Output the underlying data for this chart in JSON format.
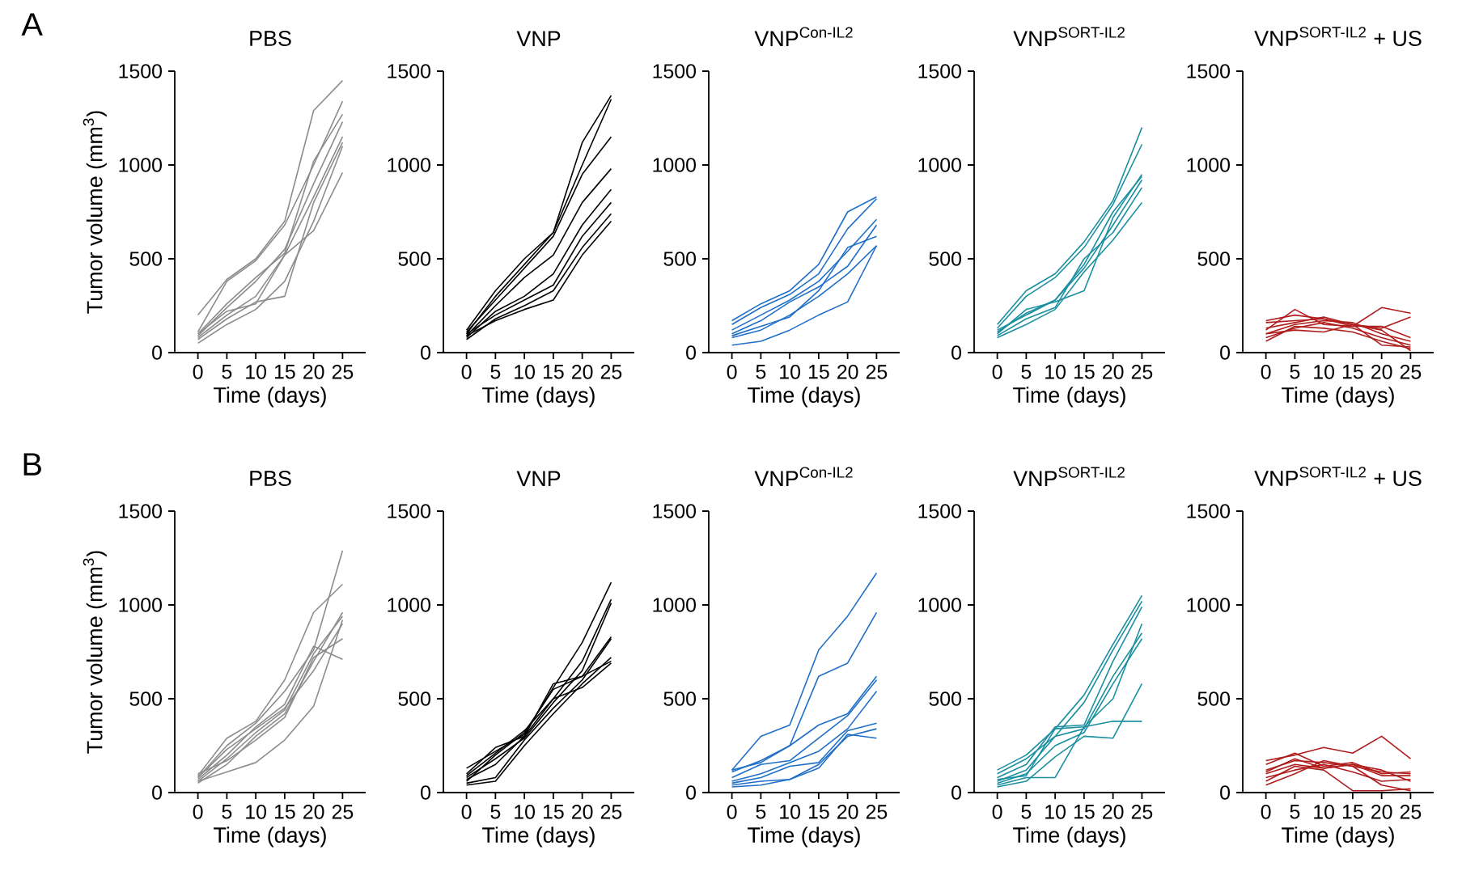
{
  "chart_data": [
    {
      "type": "line",
      "title": "PBS",
      "xlabel": "Time (days)",
      "ylabel": "Tumor volume (mm$^{3}$)",
      "annotations": [
        "A"
      ],
      "color": "#8c8c8c",
      "x": [
        0,
        5,
        10,
        15,
        20,
        25
      ],
      "xlim": [
        -4,
        29
      ],
      "xticks": [
        0,
        5,
        10,
        15,
        20,
        25
      ],
      "ylim": [
        0,
        1500
      ],
      "yticks": [
        0,
        500,
        1000,
        1500
      ],
      "series": [
        {
          "values": [
            200,
            390,
            500,
            700,
            1290,
            1450
          ]
        },
        {
          "values": [
            110,
            380,
            490,
            680,
            1000,
            1340
          ]
        },
        {
          "values": [
            100,
            260,
            400,
            530,
            1020,
            1270
          ]
        },
        {
          "values": [
            90,
            240,
            380,
            550,
            900,
            1230
          ]
        },
        {
          "values": [
            80,
            200,
            300,
            520,
            830,
            1150
          ]
        },
        {
          "values": [
            70,
            180,
            270,
            300,
            800,
            1120
          ]
        },
        {
          "values": [
            50,
            150,
            230,
            380,
            700,
            1100
          ]
        },
        {
          "values": [
            100,
            220,
            260,
            520,
            650,
            960
          ]
        }
      ]
    },
    {
      "type": "line",
      "title": "VNP",
      "xlabel": "Time (days)",
      "color": "#000000",
      "x": [
        0,
        5,
        10,
        15,
        20,
        25
      ],
      "xlim": [
        -4,
        29
      ],
      "xticks": [
        0,
        5,
        10,
        15,
        20,
        25
      ],
      "ylim": [
        0,
        1500
      ],
      "yticks": [
        0,
        500,
        1000,
        1500
      ],
      "series": [
        {
          "values": [
            100,
            300,
            470,
            640,
            1120,
            1370
          ]
        },
        {
          "values": [
            120,
            330,
            500,
            640,
            1000,
            1350
          ]
        },
        {
          "values": [
            110,
            280,
            450,
            620,
            950,
            1150
          ]
        },
        {
          "values": [
            90,
            250,
            400,
            520,
            800,
            980
          ]
        },
        {
          "values": [
            80,
            220,
            300,
            420,
            680,
            870
          ]
        },
        {
          "values": [
            100,
            200,
            280,
            360,
            620,
            800
          ]
        },
        {
          "values": [
            70,
            180,
            250,
            330,
            560,
            740
          ]
        },
        {
          "values": [
            90,
            170,
            230,
            280,
            520,
            700
          ]
        }
      ]
    },
    {
      "type": "line",
      "title": "VNP$^{Con-IL2}$",
      "xlabel": "Time (days)",
      "color": "#1f6fc8",
      "x": [
        0,
        5,
        10,
        15,
        20,
        25
      ],
      "xlim": [
        -4,
        29
      ],
      "xticks": [
        0,
        5,
        10,
        15,
        20,
        25
      ],
      "ylim": [
        0,
        1500
      ],
      "yticks": [
        0,
        500,
        1000,
        1500
      ],
      "series": [
        {
          "values": [
            170,
            260,
            330,
            470,
            750,
            830
          ]
        },
        {
          "values": [
            150,
            240,
            310,
            420,
            660,
            820
          ]
        },
        {
          "values": [
            120,
            200,
            280,
            380,
            540,
            710
          ]
        },
        {
          "values": [
            100,
            170,
            270,
            350,
            460,
            680
          ]
        },
        {
          "values": [
            90,
            140,
            190,
            330,
            560,
            620
          ]
        },
        {
          "values": [
            80,
            120,
            200,
            300,
            420,
            570
          ]
        },
        {
          "values": [
            40,
            60,
            120,
            200,
            270,
            570
          ]
        }
      ]
    },
    {
      "type": "line",
      "title": "VNP$^{SORT-IL2}$",
      "xlabel": "Time (days)",
      "color": "#1a8fa0",
      "x": [
        0,
        5,
        10,
        15,
        20,
        25
      ],
      "xlim": [
        -4,
        29
      ],
      "xticks": [
        0,
        5,
        10,
        15,
        20,
        25
      ],
      "ylim": [
        0,
        1500
      ],
      "yticks": [
        0,
        500,
        1000,
        1500
      ],
      "series": [
        {
          "values": [
            150,
            330,
            420,
            590,
            810,
            1200
          ]
        },
        {
          "values": [
            130,
            300,
            400,
            560,
            790,
            1110
          ]
        },
        {
          "values": [
            100,
            230,
            270,
            330,
            720,
            950
          ]
        },
        {
          "values": [
            110,
            210,
            280,
            450,
            680,
            920
          ]
        },
        {
          "values": [
            90,
            180,
            240,
            500,
            640,
            880
          ]
        },
        {
          "values": [
            80,
            150,
            230,
            430,
            600,
            800
          ]
        },
        {
          "values": [
            120,
            200,
            280,
            470,
            750,
            940
          ]
        }
      ]
    },
    {
      "type": "line",
      "title": "VNP$^{SORT-IL2}$ + US",
      "xlabel": "Time (days)",
      "color": "#b01c1c",
      "x": [
        0,
        5,
        10,
        15,
        20,
        25
      ],
      "xlim": [
        -4,
        29
      ],
      "xticks": [
        0,
        5,
        10,
        15,
        20,
        25
      ],
      "ylim": [
        0,
        1500
      ],
      "yticks": [
        0,
        500,
        1000,
        1500
      ],
      "series": [
        {
          "values": [
            160,
            170,
            180,
            140,
            240,
            210
          ]
        },
        {
          "values": [
            170,
            200,
            180,
            150,
            130,
            190
          ]
        },
        {
          "values": [
            120,
            230,
            150,
            140,
            140,
            80
          ]
        },
        {
          "values": [
            100,
            150,
            170,
            160,
            100,
            60
          ]
        },
        {
          "values": [
            80,
            130,
            160,
            130,
            80,
            40
          ]
        },
        {
          "values": [
            60,
            140,
            130,
            110,
            60,
            20
          ]
        },
        {
          "values": [
            130,
            160,
            190,
            150,
            120,
            10
          ]
        },
        {
          "values": [
            100,
            120,
            110,
            150,
            40,
            30
          ]
        }
      ]
    },
    {
      "type": "line",
      "title": "PBS",
      "xlabel": "Time (days)",
      "ylabel": "Tumor volume (mm$^{3}$)",
      "annotations": [
        "B"
      ],
      "color": "#8c8c8c",
      "x": [
        0,
        5,
        10,
        15,
        20,
        25
      ],
      "xlim": [
        -4,
        29
      ],
      "xticks": [
        0,
        5,
        10,
        15,
        20,
        25
      ],
      "ylim": [
        0,
        1500
      ],
      "yticks": [
        0,
        500,
        1000,
        1500
      ],
      "series": [
        {
          "values": [
            90,
            290,
            380,
            600,
            960,
            1110
          ]
        },
        {
          "values": [
            80,
            250,
            370,
            540,
            760,
            1290
          ]
        },
        {
          "values": [
            70,
            200,
            350,
            470,
            780,
            710
          ]
        },
        {
          "values": [
            60,
            180,
            320,
            440,
            740,
            940
          ]
        },
        {
          "values": [
            50,
            150,
            300,
            420,
            700,
            960
          ]
        },
        {
          "values": [
            100,
            170,
            280,
            400,
            720,
            820
          ]
        },
        {
          "values": [
            60,
            110,
            160,
            280,
            460,
            920
          ]
        },
        {
          "values": [
            80,
            230,
            340,
            450,
            650,
            900
          ]
        }
      ]
    },
    {
      "type": "line",
      "title": "VNP",
      "xlabel": "Time (days)",
      "color": "#000000",
      "x": [
        0,
        5,
        10,
        15,
        20,
        25
      ],
      "xlim": [
        -4,
        29
      ],
      "xticks": [
        0,
        5,
        10,
        15,
        20,
        25
      ],
      "ylim": [
        0,
        1500
      ],
      "yticks": [
        0,
        500,
        1000,
        1500
      ],
      "series": [
        {
          "values": [
            130,
            220,
            310,
            560,
            800,
            1120
          ]
        },
        {
          "values": [
            100,
            240,
            300,
            500,
            700,
            1030
          ]
        },
        {
          "values": [
            80,
            180,
            290,
            480,
            650,
            1010
          ]
        },
        {
          "values": [
            60,
            200,
            320,
            550,
            620,
            830
          ]
        },
        {
          "values": [
            50,
            80,
            280,
            450,
            600,
            820
          ]
        },
        {
          "values": [
            70,
            150,
            300,
            580,
            620,
            700
          ]
        },
        {
          "values": [
            40,
            60,
            250,
            420,
            580,
            720
          ]
        },
        {
          "values": [
            90,
            210,
            330,
            500,
            560,
            690
          ]
        }
      ]
    },
    {
      "type": "line",
      "title": "VNP$^{Con-IL2}$",
      "xlabel": "Time (days)",
      "color": "#1f6fc8",
      "x": [
        0,
        5,
        10,
        15,
        20,
        25
      ],
      "xlim": [
        -4,
        29
      ],
      "xticks": [
        0,
        5,
        10,
        15,
        20,
        25
      ],
      "ylim": [
        0,
        1500
      ],
      "yticks": [
        0,
        500,
        1000,
        1500
      ],
      "series": [
        {
          "values": [
            120,
            300,
            360,
            760,
            940,
            1170
          ]
        },
        {
          "values": [
            110,
            170,
            250,
            620,
            690,
            960
          ]
        },
        {
          "values": [
            120,
            160,
            250,
            360,
            420,
            620
          ]
        },
        {
          "values": [
            80,
            150,
            170,
            290,
            410,
            600
          ]
        },
        {
          "values": [
            60,
            100,
            160,
            220,
            340,
            540
          ]
        },
        {
          "values": [
            50,
            80,
            140,
            160,
            330,
            370
          ]
        },
        {
          "values": [
            40,
            60,
            70,
            150,
            300,
            340
          ]
        },
        {
          "values": [
            30,
            40,
            70,
            130,
            310,
            290
          ]
        }
      ]
    },
    {
      "type": "line",
      "title": "VNP$^{SORT-IL2}$",
      "xlabel": "Time (days)",
      "color": "#1a8fa0",
      "x": [
        0,
        5,
        10,
        15,
        20,
        25
      ],
      "xlim": [
        -4,
        29
      ],
      "xticks": [
        0,
        5,
        10,
        15,
        20,
        25
      ],
      "ylim": [
        0,
        1500
      ],
      "yticks": [
        0,
        500,
        1000,
        1500
      ],
      "series": [
        {
          "values": [
            120,
            200,
            340,
            520,
            790,
            1050
          ]
        },
        {
          "values": [
            100,
            180,
            300,
            480,
            760,
            1020
          ]
        },
        {
          "values": [
            80,
            150,
            350,
            360,
            700,
            990
          ]
        },
        {
          "values": [
            60,
            120,
            300,
            340,
            620,
            850
          ]
        },
        {
          "values": [
            50,
            100,
            250,
            320,
            580,
            820
          ]
        },
        {
          "values": [
            30,
            60,
            190,
            300,
            290,
            580
          ]
        },
        {
          "values": [
            40,
            80,
            80,
            350,
            380,
            380
          ]
        },
        {
          "values": [
            70,
            90,
            340,
            350,
            500,
            900
          ]
        }
      ]
    },
    {
      "type": "line",
      "title": "VNP$^{SORT-IL2}$ + US",
      "xlabel": "Time (days)",
      "color": "#b01c1c",
      "x": [
        0,
        5,
        10,
        15,
        20,
        25
      ],
      "xlim": [
        -4,
        29
      ],
      "xticks": [
        0,
        5,
        10,
        15,
        20,
        25
      ],
      "ylim": [
        0,
        1500
      ],
      "yticks": [
        0,
        500,
        1000,
        1500
      ],
      "series": [
        {
          "values": [
            170,
            200,
            240,
            210,
            300,
            180
          ]
        },
        {
          "values": [
            150,
            210,
            140,
            160,
            100,
            110
          ]
        },
        {
          "values": [
            120,
            170,
            160,
            140,
            110,
            100
          ]
        },
        {
          "values": [
            100,
            150,
            130,
            150,
            90,
            90
          ]
        },
        {
          "values": [
            80,
            120,
            150,
            110,
            60,
            70
          ]
        },
        {
          "values": [
            60,
            140,
            120,
            10,
            10,
            20
          ]
        },
        {
          "values": [
            40,
            100,
            170,
            140,
            40,
            10
          ]
        },
        {
          "values": [
            110,
            180,
            130,
            150,
            120,
            60
          ]
        }
      ]
    }
  ]
}
